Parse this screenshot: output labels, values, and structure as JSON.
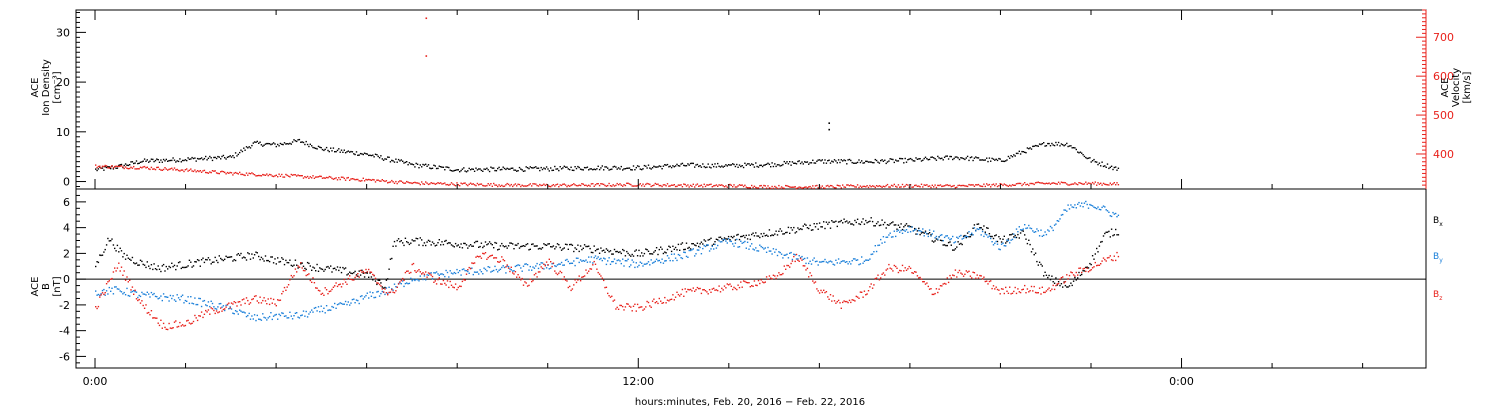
{
  "chart_data": [
    {
      "type": "scatter",
      "panel": "top",
      "left_axis": {
        "label_lines": [
          "ACE",
          "Ion Density",
          "[cm⁻³]"
        ],
        "ylim": [
          -1.5,
          34.5
        ],
        "ticks": [
          0,
          10,
          20,
          30
        ],
        "color": "#000000"
      },
      "right_axis": {
        "label_lines": [
          "ACE",
          "Velocity",
          "[km/s]"
        ],
        "ylim": [
          310,
          770
        ],
        "ticks": [
          400,
          500,
          600,
          700
        ],
        "color": "#e8211b"
      },
      "series": [
        {
          "axis": "left",
          "color": "#000000",
          "x": [
            0,
            0.5,
            1,
            2,
            3,
            3.5,
            4,
            4.5,
            5,
            6,
            7,
            8,
            9,
            10,
            11,
            12,
            13,
            14,
            15,
            16,
            17,
            18,
            19,
            20,
            20.5,
            21,
            21.5,
            22,
            22.6
          ],
          "y": [
            2.5,
            3.1,
            4.2,
            4.6,
            5.0,
            7.8,
            7.5,
            8.3,
            6.7,
            5.6,
            3.5,
            2.5,
            2.6,
            2.7,
            2.9,
            2.9,
            3.4,
            3.3,
            3.6,
            4.2,
            4.1,
            4.4,
            5.0,
            4.3,
            6.2,
            7.8,
            7.6,
            4.3,
            2.6
          ]
        },
        {
          "axis": "right",
          "color": "#e8211b",
          "x": [
            0,
            1,
            2,
            3,
            4,
            5,
            6,
            7,
            8,
            9,
            10,
            11,
            12,
            13,
            14,
            15,
            16,
            17,
            18,
            19,
            20,
            21,
            22,
            22.6
          ],
          "y": [
            370,
            367,
            360,
            352,
            347,
            341,
            335,
            327,
            324,
            322,
            321,
            322,
            323,
            321,
            320,
            317,
            317,
            319,
            320,
            319,
            322,
            326,
            326,
            324
          ]
        }
      ],
      "outliers": [
        {
          "axis": "left",
          "color": "#e8211b",
          "x": [
            7.3,
            7.3
          ],
          "y": [
            33.0,
            25.4
          ]
        },
        {
          "axis": "left",
          "color": "#000000",
          "x": [
            16.2,
            16.2
          ],
          "y": [
            11.9,
            10.6
          ]
        }
      ]
    },
    {
      "type": "scatter",
      "panel": "bottom",
      "left_axis": {
        "label_lines": [
          "ACE",
          "B",
          "[nT]"
        ],
        "ylim": [
          -6.9,
          7.0
        ],
        "ticks": [
          -6,
          -4,
          -2,
          0,
          2,
          4,
          6
        ],
        "color": "#000000"
      },
      "zero_line": true,
      "series": [
        {
          "name": "Bx",
          "name_main": "B",
          "name_sub": "x",
          "color": "#000000",
          "x": [
            0,
            0.3,
            0.6,
            1,
            1.4,
            2,
            2.8,
            3.5,
            4,
            5,
            6,
            6.4,
            6.6,
            7,
            8,
            9,
            10,
            11,
            12,
            13,
            14,
            15,
            16,
            17,
            18,
            19,
            19.5,
            20,
            20.5,
            21,
            21.5,
            22,
            22.3,
            22.6
          ],
          "y": [
            1.1,
            3.2,
            1.9,
            1.3,
            0.9,
            1.2,
            1.6,
            1.9,
            1.5,
            0.9,
            0.4,
            -0.5,
            2.9,
            3.0,
            2.8,
            2.6,
            2.6,
            2.4,
            2.0,
            2.6,
            3.2,
            3.7,
            4.2,
            4.6,
            4.0,
            2.5,
            4.3,
            3.0,
            3.6,
            0.2,
            -0.6,
            1.5,
            3.5,
            3.8
          ]
        },
        {
          "name": "By",
          "name_main": "B",
          "name_sub": "y",
          "color": "#1a7fd9",
          "x": [
            0,
            0.5,
            1,
            2,
            3,
            3.5,
            4,
            4.5,
            5,
            5.5,
            6,
            6.5,
            7,
            8,
            9,
            10,
            11,
            12,
            13,
            14,
            15,
            16,
            17,
            17.5,
            18,
            19,
            19.5,
            20,
            20.5,
            21,
            21.5,
            22,
            22.6
          ],
          "y": [
            -1.0,
            -0.8,
            -1.2,
            -1.5,
            -2.3,
            -3.0,
            -2.8,
            -2.8,
            -2.3,
            -2.0,
            -1.3,
            -0.8,
            0.1,
            0.6,
            0.8,
            1.1,
            1.6,
            1.2,
            1.9,
            3.0,
            2.1,
            1.3,
            1.5,
            3.5,
            4.0,
            3.0,
            3.9,
            2.5,
            4.2,
            3.5,
            5.6,
            5.9,
            4.9
          ]
        },
        {
          "name": "Bz",
          "name_main": "B",
          "name_sub": "z",
          "color": "#e8211b",
          "x": [
            0,
            0.5,
            1,
            1.5,
            2,
            2.5,
            3,
            3.5,
            4,
            4.5,
            5,
            6,
            6.5,
            7,
            7.5,
            8,
            8.5,
            9,
            9.5,
            10,
            10.5,
            11,
            11.5,
            12,
            13,
            14,
            15,
            15.5,
            16,
            16.5,
            17,
            17.5,
            18,
            18.5,
            19,
            19.5,
            20,
            20.5,
            21,
            21.5,
            22,
            22.3,
            22.6
          ],
          "y": [
            -2.2,
            1.2,
            -1.8,
            -3.6,
            -3.4,
            -2.5,
            -2.0,
            -1.5,
            -1.8,
            1.2,
            -1.0,
            0.7,
            -1.2,
            1.0,
            0.0,
            -0.6,
            2.0,
            1.5,
            -0.5,
            1.5,
            -0.6,
            1.2,
            -2.1,
            -2.2,
            -1.0,
            -0.6,
            0.1,
            1.8,
            -0.8,
            -2.0,
            -1.0,
            0.9,
            0.8,
            -1.0,
            0.5,
            0.3,
            -0.9,
            -0.7,
            -0.9,
            0.3,
            1.0,
            1.5,
            1.9
          ]
        }
      ]
    }
  ],
  "x_axis": {
    "label": "hours:minutes, Feb. 20, 2016 − Feb. 22, 2016",
    "xlim": [
      -0.42,
      29.4
    ],
    "major_ticks": [
      0,
      12,
      24
    ],
    "tick_labels": [
      "0:00",
      "12:00",
      "0:00"
    ],
    "minor_step": 2
  },
  "colors": {
    "black": "#000000",
    "red": "#e8211b",
    "blue": "#1a7fd9"
  }
}
